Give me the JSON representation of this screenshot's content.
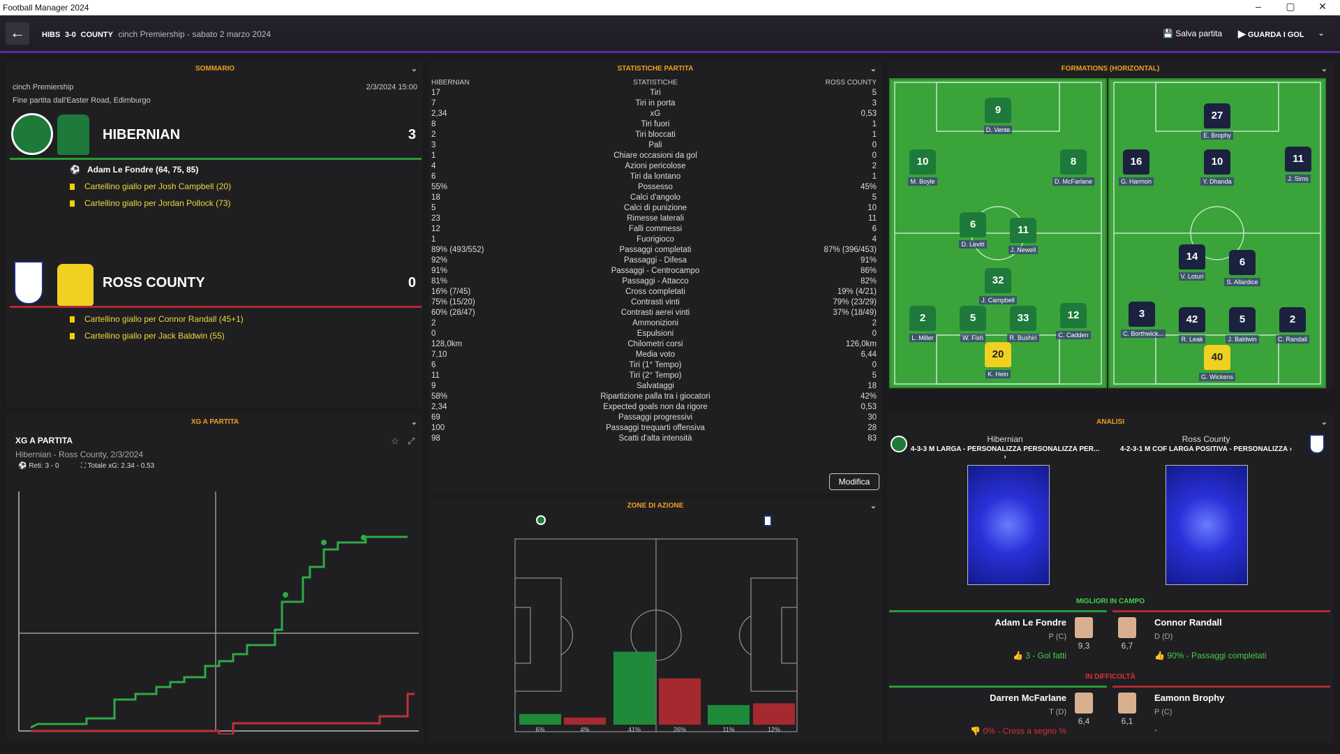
{
  "window": {
    "title": "Football Manager 2024",
    "min": "–",
    "max": "▢",
    "close": "✕"
  },
  "header": {
    "home": "HIBS",
    "score": "3-0",
    "away": "COUNTY",
    "competition": "cinch Premiership - sabato 2 marzo 2024",
    "save_label": "Salva partita",
    "watch_label": "GUARDA I GOL"
  },
  "summary": {
    "title": "SOMMARIO",
    "competition": "cinch Premiership",
    "datetime": "2/3/2024 15:00",
    "venue": "Fine partita dall'Easter Road, Edimburgo",
    "home": {
      "name": "HIBERNIAN",
      "score": "3",
      "events": [
        "Adam Le Fondre (64, 75, 85)",
        "Cartellino giallo per Josh Campbell (20)",
        "Cartellino giallo per Jordan Pollock (73)"
      ]
    },
    "away": {
      "name": "ROSS COUNTY",
      "score": "0",
      "events": [
        "Cartellino giallo per Connor Randall (45+1)",
        "Cartellino giallo per Jack Baldwin (55)"
      ]
    }
  },
  "xg": {
    "section_title": "XG A PARTITA",
    "title": "XG A PARTITA",
    "subtitle": "Hibernian - Ross County, 2/3/2024",
    "goals": "Reti: 3 - 0",
    "total": "Totale xG: 2.34 - 0.53",
    "colors": {
      "home": "#2eaa45",
      "away": "#c03038"
    }
  },
  "stats": {
    "title": "STATISTICHE PARTITA",
    "h_home": "HIBERNIAN",
    "h_mid": "STATISTICHE",
    "h_away": "ROSS COUNTY",
    "edit_label": "Modifica",
    "rows": [
      [
        "17",
        "Tiri",
        "5"
      ],
      [
        "7",
        "Tiri in porta",
        "3"
      ],
      [
        "2,34",
        "xG",
        "0,53"
      ],
      [
        "8",
        "Tiri fuori",
        "1"
      ],
      [
        "2",
        "Tiri bloccati",
        "1"
      ],
      [
        "3",
        "Pali",
        "0"
      ],
      [
        "1",
        "Chiare occasioni da gol",
        "0"
      ],
      [
        "4",
        "Azioni pericolose",
        "2"
      ],
      [
        "6",
        "Tiri da lontano",
        "1"
      ],
      [
        "55%",
        "Possesso",
        "45%"
      ],
      [
        "18",
        "Calci d'angolo",
        "5"
      ],
      [
        "5",
        "Calci di punizione",
        "10"
      ],
      [
        "23",
        "Rimesse laterali",
        "11"
      ],
      [
        "12",
        "Falli commessi",
        "6"
      ],
      [
        "1",
        "Fuorigioco",
        "4"
      ],
      [
        "89% (493/552)",
        "Passaggi completati",
        "87% (396/453)"
      ],
      [
        "92%",
        "Passaggi - Difesa",
        "91%"
      ],
      [
        "91%",
        "Passaggi - Centrocampo",
        "86%"
      ],
      [
        "81%",
        "Passaggi - Attacco",
        "82%"
      ],
      [
        "16% (7/45)",
        "Cross completati",
        "19% (4/21)"
      ],
      [
        "75% (15/20)",
        "Contrasti vinti",
        "79% (23/29)"
      ],
      [
        "60% (28/47)",
        "Contrasti aerei vinti",
        "37% (18/49)"
      ],
      [
        "2",
        "Ammonizioni",
        "2"
      ],
      [
        "0",
        "Espulsioni",
        "0"
      ],
      [
        "128,0km",
        "Chilometri corsi",
        "126,0km"
      ],
      [
        "7,10",
        "Media voto",
        "6,44"
      ],
      [
        "6",
        "Tiri (1° Tempo)",
        "0"
      ],
      [
        "11",
        "Tiri (2° Tempo)",
        "5"
      ],
      [
        "9",
        "Salvataggi",
        "18"
      ],
      [
        "58%",
        "Ripartizione palla tra i giocatori",
        "42%"
      ],
      [
        "2,34",
        "Expected goals non da rigore",
        "0,53"
      ],
      [
        "69",
        "Passaggi progressivi",
        "30"
      ],
      [
        "100",
        "Passaggi trequarti offensiva",
        "28"
      ],
      [
        "98",
        "Scatti d'alta intensità",
        "83"
      ]
    ]
  },
  "zones": {
    "title": "ZONE DI AZIONE",
    "bars": [
      {
        "home": 6,
        "away": 4,
        "home_label": "6%",
        "away_label": "4%"
      },
      {
        "home": 41,
        "away": 26,
        "home_label": "41%",
        "away_label": "26%"
      },
      {
        "home": 11,
        "away": 12,
        "home_label": "11%",
        "away_label": "12%"
      }
    ]
  },
  "formations": {
    "title": "FORMATIONS (HORIZONTAL)",
    "home": [
      {
        "n": "9",
        "name": "D. Vente"
      },
      {
        "n": "10",
        "name": "M. Boyle"
      },
      {
        "n": "8",
        "name": "D. McFarlane"
      },
      {
        "n": "6",
        "name": "D. Levitt"
      },
      {
        "n": "11",
        "name": "J. Newell"
      },
      {
        "n": "32",
        "name": "J. Campbell"
      },
      {
        "n": "2",
        "name": "L. Miller"
      },
      {
        "n": "5",
        "name": "W. Fish"
      },
      {
        "n": "33",
        "name": "R. Bushiri"
      },
      {
        "n": "12",
        "name": "C. Cadden"
      },
      {
        "n": "20",
        "name": "K. Hein"
      }
    ],
    "away": [
      {
        "n": "27",
        "name": "E. Brophy"
      },
      {
        "n": "16",
        "name": "G. Harmon"
      },
      {
        "n": "10",
        "name": "Y. Dhanda"
      },
      {
        "n": "11",
        "name": "J. Sims"
      },
      {
        "n": "14",
        "name": "V. Loturi"
      },
      {
        "n": "6",
        "name": "S. Allardice"
      },
      {
        "n": "3",
        "name": "C. Borthwick..."
      },
      {
        "n": "42",
        "name": "R. Leak"
      },
      {
        "n": "5",
        "name": "J. Baldwin"
      },
      {
        "n": "2",
        "name": "C. Randall"
      },
      {
        "n": "40",
        "name": "G. Wickens"
      }
    ]
  },
  "analysis": {
    "title": "ANALISI",
    "home_team": "Hibernian",
    "away_team": "Ross County",
    "home_tactic": "4-3-3 M LARGA - PERSONALIZZA PERSONALIZZA PER...",
    "away_tactic": "4-2-3-1 M COF LARGA POSITIVA - PERSONALIZZA",
    "best_title": "MIGLIORI IN CAMPO",
    "worst_title": "IN DIFFICOLTÀ",
    "best": [
      {
        "name": "Adam Le Fondre",
        "pos": "P (C)",
        "rating": "9,3",
        "note": "3 - Gol fatti"
      },
      {
        "name": "Connor Randall",
        "pos": "D (D)",
        "rating": "6,7",
        "note": "90% - Passaggi completati"
      }
    ],
    "worst": [
      {
        "name": "Darren McFarlane",
        "pos": "T (D)",
        "rating": "6,4",
        "note": "0% - Cross a segno %"
      },
      {
        "name": "Eamonn Brophy",
        "pos": "P (C)",
        "rating": "6,1",
        "note": "-"
      }
    ]
  }
}
